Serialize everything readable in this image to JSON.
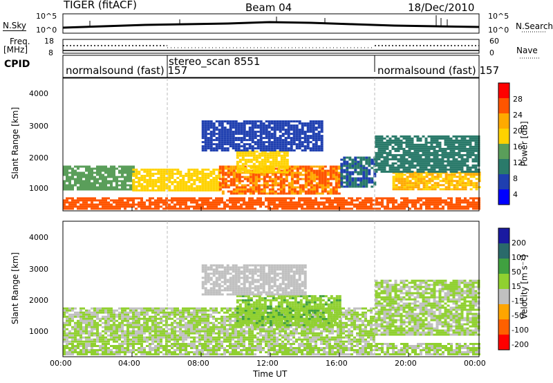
{
  "header": {
    "radar": "TIGER (fitACF)",
    "beam": "Beam 04",
    "date": "18/Dec/2010"
  },
  "top_panels": {
    "nsky_label": "N.Sky",
    "nsky_ticks": [
      "10^5",
      "10^0"
    ],
    "nsearch_label": "N.Search",
    "nsearch_ticks": [
      "10^5",
      "10^0"
    ],
    "freq_label_1": "Freq.",
    "freq_label_2": "[MHz]",
    "freq_ticks": [
      "18",
      "8"
    ],
    "nave_label": "Nave",
    "nave_ticks": [
      "60",
      "0"
    ],
    "cpid_label": "CPID"
  },
  "cpid_segments": [
    {
      "label": "normalsound (fast) 157",
      "start_hour": 0
    },
    {
      "label": "stereo_scan 8551",
      "start_hour": 6
    },
    {
      "label": "normalsound (fast) 157",
      "start_hour": 18
    }
  ],
  "power_panel": {
    "ylabel": "Slant Range [km]",
    "y_ticks": [
      "4000",
      "3000",
      "2000",
      "1000"
    ],
    "colorbar_label": "Power [dB]",
    "colorbar_ticks": [
      "28",
      "24",
      "20",
      "16",
      "12",
      "8",
      "4"
    ],
    "colors": [
      "#ff0000",
      "#ff5500",
      "#ffaa00",
      "#ffd200",
      "#5a9e5a",
      "#2a7a6a",
      "#1f3fb0",
      "#0000ff"
    ]
  },
  "velocity_panel": {
    "ylabel": "Slant Range [km]",
    "y_ticks": [
      "4000",
      "3000",
      "2000",
      "1000"
    ],
    "colorbar_label": "Velocity [m s⁻¹]",
    "colorbar_ticks": [
      "200",
      "100",
      "50",
      "15",
      "-15",
      "-50",
      "-100",
      "-200"
    ],
    "colors": [
      "#1a1aa0",
      "#2a6a6a",
      "#40a040",
      "#90d030",
      "#c0c0c0",
      "#ffa500",
      "#ff6000",
      "#ff0000"
    ]
  },
  "x_axis": {
    "label": "Time UT",
    "ticks": [
      "00:00",
      "04:00",
      "08:00",
      "12:00",
      "16:00",
      "20:00",
      "00:00"
    ]
  },
  "chart_data": [
    {
      "type": "heatmap",
      "title": "Power",
      "xlabel": "Time UT",
      "ylabel": "Slant Range [km]",
      "xlim": [
        0,
        24
      ],
      "ylim": [
        200,
        4600
      ],
      "colorbar_label": "Power [dB]",
      "colorbar_range": [
        0,
        32
      ],
      "bands": [
        {
          "t0": 0,
          "t1": 24,
          "r0": 250,
          "r1": 650,
          "value": 26
        },
        {
          "t0": 0,
          "t1": 4,
          "r0": 900,
          "r1": 1700,
          "value": 14
        },
        {
          "t0": 4,
          "t1": 9,
          "r0": 900,
          "r1": 1600,
          "value": 18
        },
        {
          "t0": 9,
          "t1": 16,
          "r0": 800,
          "r1": 1700,
          "value": 24
        },
        {
          "t0": 10,
          "t1": 13,
          "r0": 1500,
          "r1": 2200,
          "value": 18
        },
        {
          "t0": 8,
          "t1": 15,
          "r0": 2200,
          "r1": 3200,
          "value": 6
        },
        {
          "t0": 16,
          "t1": 18,
          "r0": 1000,
          "r1": 2000,
          "value": 8
        },
        {
          "t0": 19,
          "t1": 24,
          "r0": 900,
          "r1": 1500,
          "value": 20
        },
        {
          "t0": 18,
          "t1": 24,
          "r0": 1500,
          "r1": 2700,
          "value": 10
        }
      ]
    },
    {
      "type": "heatmap",
      "title": "Velocity",
      "xlabel": "Time UT",
      "ylabel": "Slant Range [km]",
      "xlim": [
        0,
        24
      ],
      "ylim": [
        200,
        4600
      ],
      "colorbar_label": "Velocity [m s⁻¹]",
      "colorbar_range": [
        -250,
        250
      ],
      "bands": [
        {
          "t0": 0,
          "t1": 24,
          "r0": 250,
          "r1": 650,
          "value": 0
        },
        {
          "t0": 0,
          "t1": 18,
          "r0": 700,
          "r1": 1800,
          "value": 0
        },
        {
          "t0": 10,
          "t1": 16,
          "r0": 1200,
          "r1": 2200,
          "value": 40
        },
        {
          "t0": 8,
          "t1": 14,
          "r0": 2200,
          "r1": 3200,
          "value": -30
        },
        {
          "t0": 18,
          "t1": 24,
          "r0": 900,
          "r1": 2700,
          "value": 0
        }
      ]
    }
  ]
}
